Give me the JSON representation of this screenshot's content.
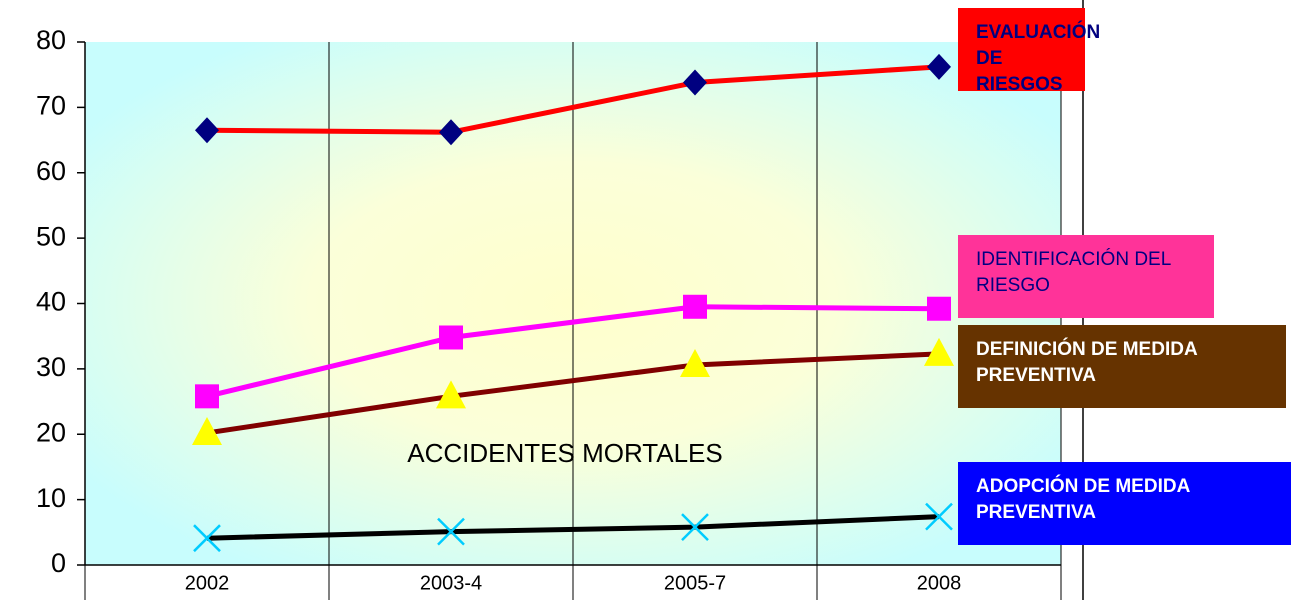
{
  "chart_data": {
    "type": "line",
    "categories": [
      "2002",
      "2003-4",
      "2005-7",
      "2008"
    ],
    "series": [
      {
        "name": "EVALUACIÓN DE RIESGOS",
        "color": "#ff0000",
        "marker": "diamond",
        "marker_color": "#000080",
        "legend_color": "#ff0000",
        "legend_text_color": "#000080",
        "legend_bold": true,
        "values": [
          66.5,
          66.2,
          73.8,
          76.2
        ]
      },
      {
        "name": "IDENTIFICACIÓN DEL RIESGO",
        "color": "#ff00ff",
        "marker": "square",
        "marker_color": "#ff00ff",
        "legend_color": "#ff3399",
        "legend_text_color": "#000080",
        "legend_bold": false,
        "values": [
          25.8,
          34.8,
          39.5,
          39.2
        ]
      },
      {
        "name": "DEFINICIÓN DE MEDIDA PREVENTIVA",
        "color": "#800000",
        "marker": "triangle",
        "marker_color": "#ffff00",
        "legend_color": "#663300",
        "legend_text_color": "#ffffff",
        "legend_bold": true,
        "values": [
          20.2,
          25.8,
          30.6,
          32.3
        ]
      },
      {
        "name": "ADOPCIÓN DE MEDIDA PREVENTIVA",
        "color": "#000000",
        "marker": "x",
        "marker_color": "#00ccff",
        "legend_color": "#0000ff",
        "legend_text_color": "#ffffff",
        "legend_bold": true,
        "values": [
          4.1,
          5.1,
          5.8,
          7.4
        ]
      }
    ],
    "annotation": "ACCIDENTES MORTALES",
    "ylim": [
      0,
      80
    ],
    "yticks": [
      0,
      10,
      20,
      30,
      40,
      50,
      60,
      70,
      80
    ],
    "grid": false
  }
}
